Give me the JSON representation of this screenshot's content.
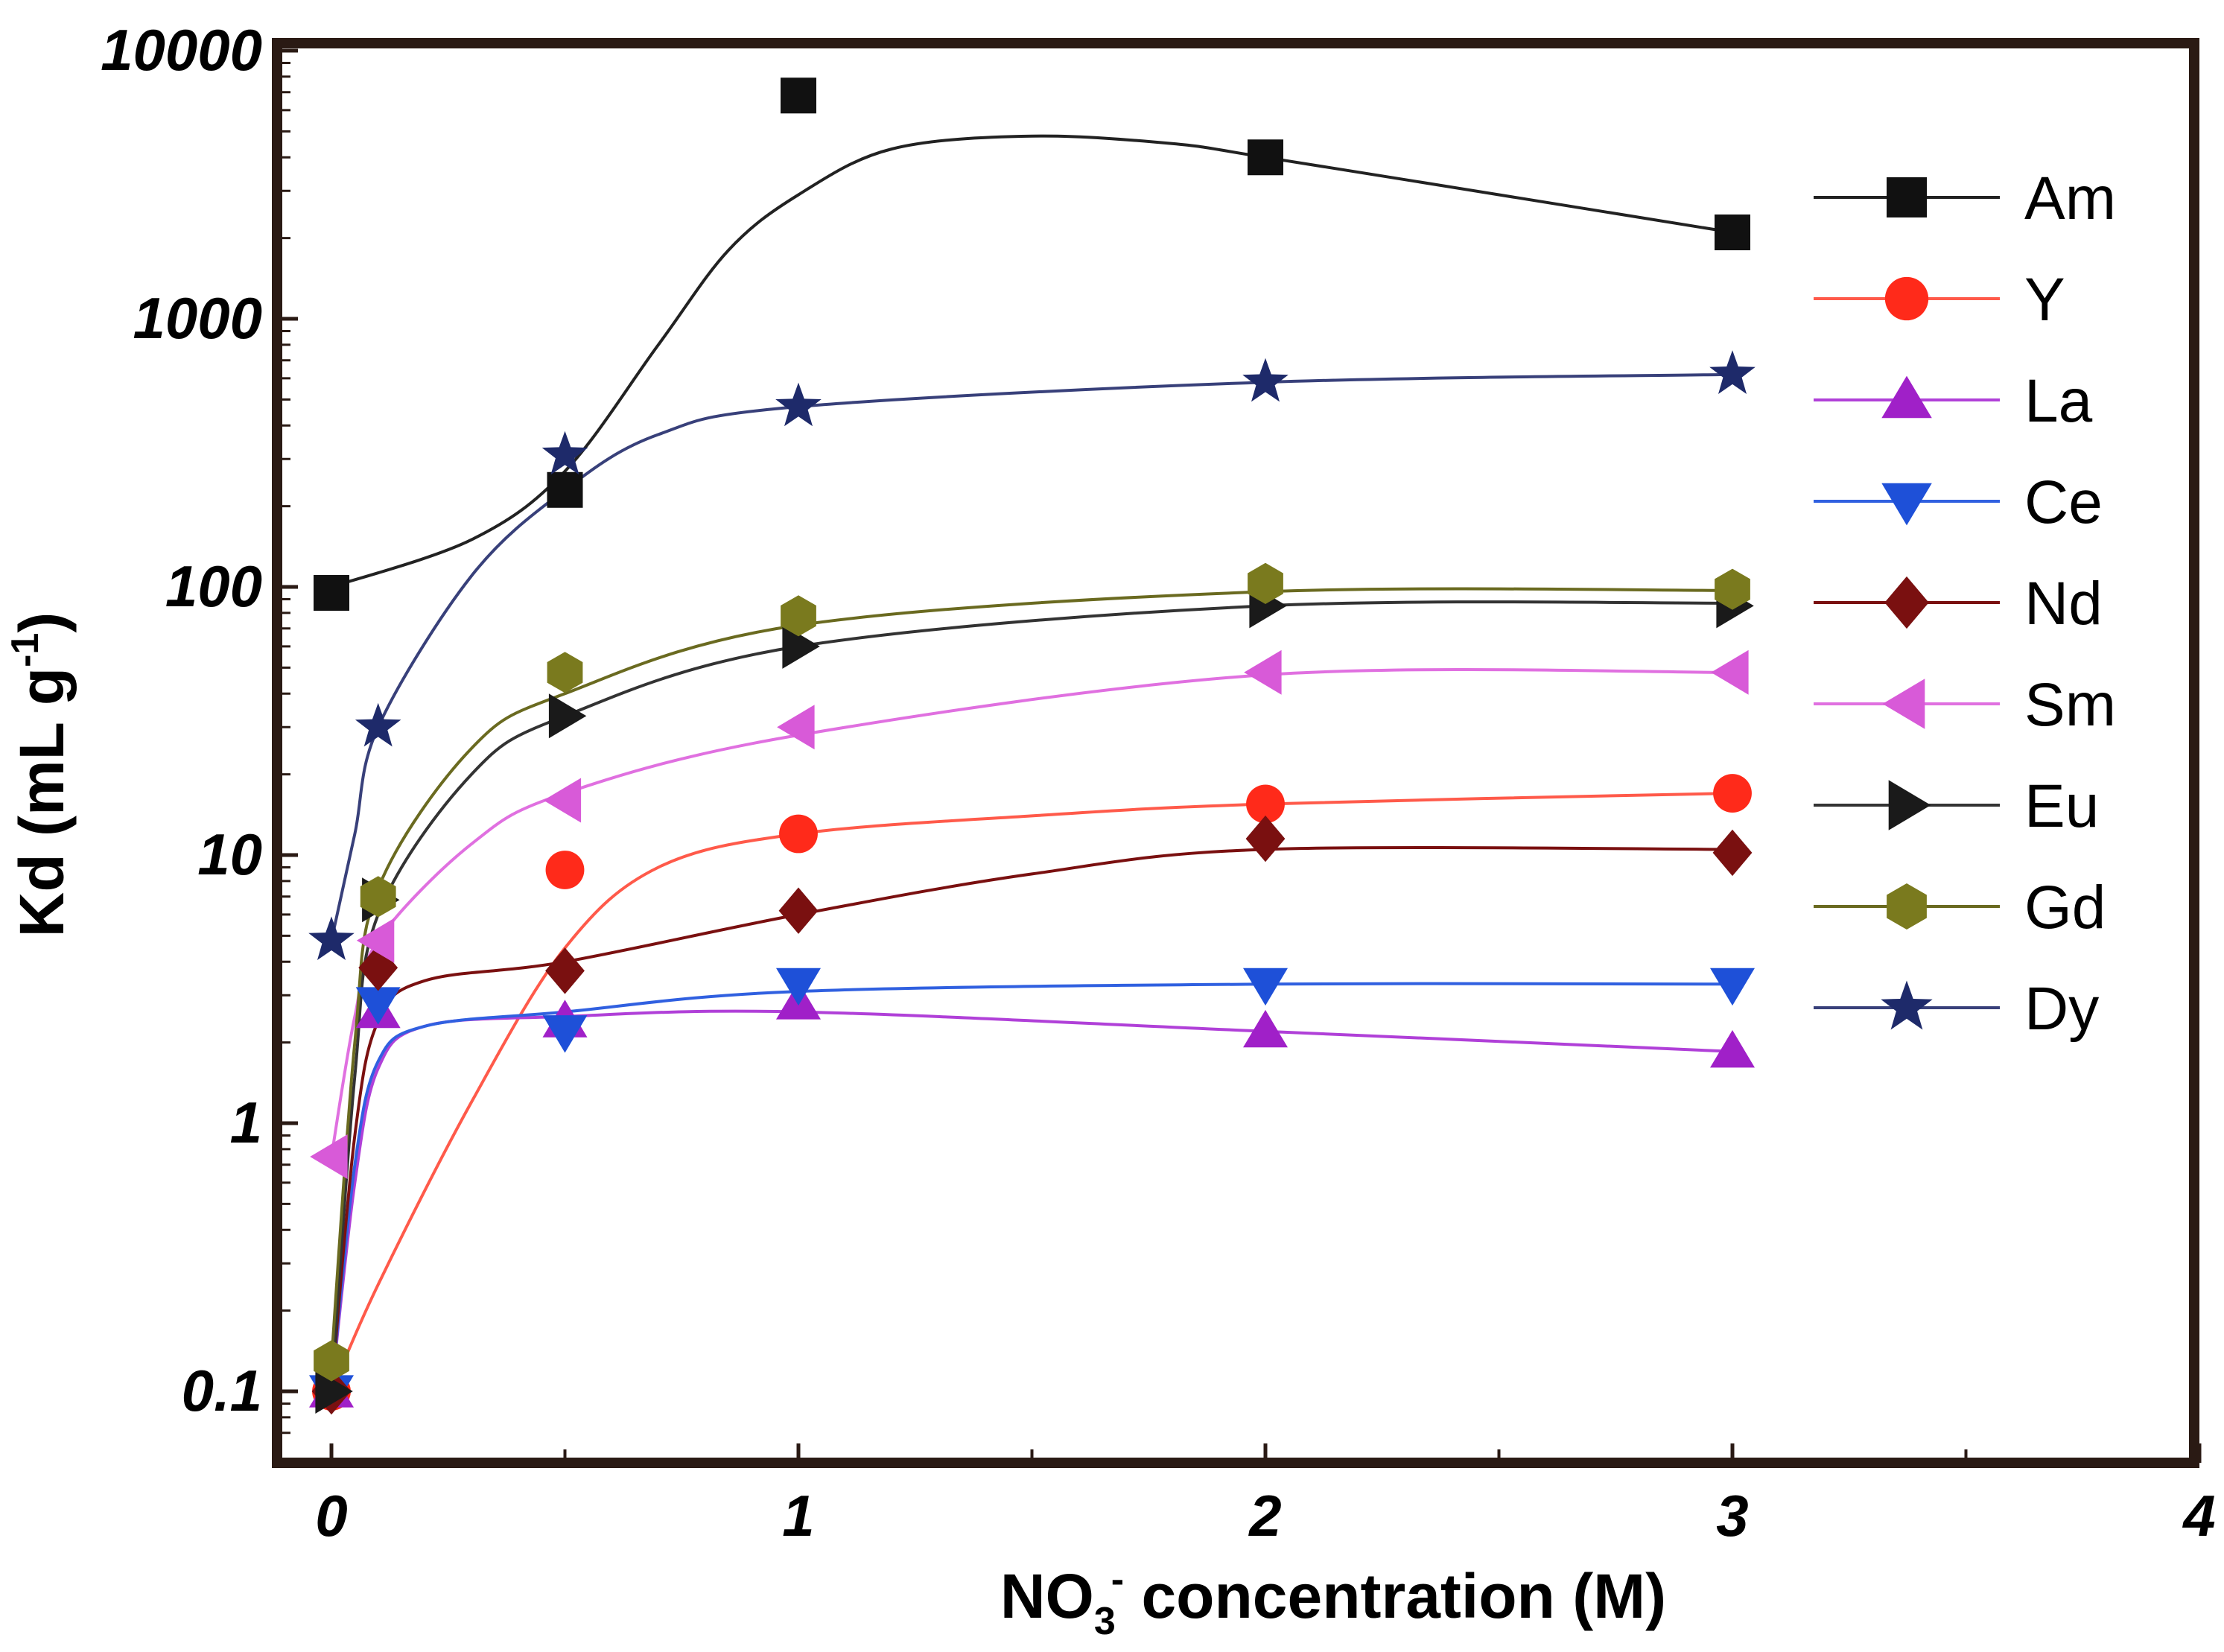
{
  "chart_data": {
    "type": "line",
    "title": "",
    "xlabel": {
      "main": "NO",
      "sub": "3",
      "sup": "-",
      "rest": " concentration (M)"
    },
    "ylabel": {
      "main": "Kd (mL g",
      "sup": "-1",
      "rest": ")"
    },
    "xlim": [
      -0.1,
      4
    ],
    "ylim": [
      0.07,
      10000
    ],
    "yscale": "log",
    "x_ticks": [
      0,
      1,
      2,
      3,
      4
    ],
    "x_tick_labels": [
      "0",
      "1",
      "2",
      "3",
      "4"
    ],
    "y_ticks": [
      0.1,
      1,
      10,
      100,
      1000,
      10000
    ],
    "y_tick_labels": [
      "0.1",
      "1",
      "10",
      "100",
      "1000",
      "10000"
    ],
    "legend_position": "right",
    "series": [
      {
        "name": "Am",
        "marker": "square",
        "color": "#111111",
        "line_color": "#222222",
        "x": [
          0,
          0.5,
          1,
          2,
          3
        ],
        "y": [
          95,
          230,
          6800,
          4000,
          2100
        ],
        "curve_x": [
          0,
          0.3,
          0.5,
          0.7,
          0.85,
          1,
          1.2,
          1.5,
          1.8,
          2,
          2.5,
          3
        ],
        "curve_y": [
          100,
          150,
          270,
          800,
          1800,
          2900,
          4300,
          4800,
          4500,
          4000,
          2900,
          2100
        ]
      },
      {
        "name": "Y",
        "marker": "circle",
        "color": "#ff2a1a",
        "line_color": "#ff5a4a",
        "x": [
          0,
          0.5,
          1,
          2,
          3
        ],
        "y": [
          0.1,
          8.8,
          12,
          15.5,
          17
        ],
        "curve_x": [
          0,
          0.1,
          0.3,
          0.5,
          0.7,
          1,
          1.5,
          2,
          3
        ],
        "curve_y": [
          0.1,
          0.25,
          1.2,
          4.5,
          9,
          12,
          14,
          15.5,
          17
        ]
      },
      {
        "name": "La",
        "marker": "triangle-up",
        "color": "#a020c8",
        "line_color": "#b040d8",
        "x": [
          0,
          0.1,
          0.5,
          1,
          2,
          3
        ],
        "y": [
          0.1,
          2.6,
          2.4,
          2.8,
          2.2,
          1.85
        ],
        "curve_x": [
          0,
          0.05,
          0.1,
          0.2,
          0.5,
          1,
          2,
          3
        ],
        "curve_y": [
          0.1,
          0.6,
          1.6,
          2.3,
          2.5,
          2.6,
          2.2,
          1.85
        ]
      },
      {
        "name": "Ce",
        "marker": "triangle-down",
        "color": "#1e50d8",
        "line_color": "#3060e0",
        "x": [
          0,
          0.1,
          0.5,
          1,
          2,
          3
        ],
        "y": [
          0.1,
          2.8,
          2.2,
          3.3,
          3.3,
          3.3
        ],
        "curve_x": [
          0,
          0.05,
          0.1,
          0.2,
          0.5,
          1,
          2,
          3
        ],
        "curve_y": [
          0.1,
          0.7,
          1.7,
          2.3,
          2.6,
          3.1,
          3.3,
          3.3
        ]
      },
      {
        "name": "Nd",
        "marker": "diamond",
        "color": "#7a1010",
        "line_color": "#7a1010",
        "x": [
          0,
          0.1,
          0.5,
          1,
          2,
          3
        ],
        "y": [
          0.1,
          3.8,
          3.7,
          6.2,
          11.5,
          10.2
        ],
        "curve_x": [
          0,
          0.05,
          0.1,
          0.2,
          0.5,
          1,
          1.5,
          2,
          3
        ],
        "curve_y": [
          0.1,
          0.9,
          2.4,
          3.4,
          4,
          6,
          8.5,
          10.5,
          10.5
        ]
      },
      {
        "name": "Sm",
        "marker": "triangle-left",
        "color": "#d85ad8",
        "line_color": "#e070e0",
        "x": [
          0,
          0.1,
          0.5,
          1,
          2,
          3
        ],
        "y": [
          0.75,
          4.8,
          16,
          30,
          48,
          48
        ],
        "curve_x": [
          0,
          0.05,
          0.1,
          0.3,
          0.5,
          1,
          2,
          3
        ],
        "curve_y": [
          0.75,
          2.5,
          4.8,
          11,
          17,
          28,
          47,
          48
        ]
      },
      {
        "name": "Eu",
        "marker": "triangle-right",
        "color": "#1a1a1a",
        "line_color": "#333333",
        "x": [
          0,
          0.1,
          0.5,
          1,
          2,
          3
        ],
        "y": [
          0.1,
          6.8,
          33,
          60,
          85,
          85
        ],
        "curve_x": [
          0,
          0.05,
          0.1,
          0.3,
          0.5,
          1,
          2,
          3
        ],
        "curve_y": [
          0.1,
          1.5,
          6,
          20,
          33,
          60,
          85,
          87
        ]
      },
      {
        "name": "Gd",
        "marker": "hexagon",
        "color": "#7a7a1e",
        "line_color": "#6a6a20",
        "x": [
          0,
          0.1,
          0.5,
          1,
          2,
          3
        ],
        "y": [
          0.13,
          7,
          48,
          78,
          103,
          98
        ],
        "curve_x": [
          0,
          0.05,
          0.1,
          0.3,
          0.5,
          1,
          2,
          3
        ],
        "curve_y": [
          0.13,
          2,
          7.5,
          25,
          40,
          72,
          96,
          97
        ]
      },
      {
        "name": "Dy",
        "marker": "star",
        "color": "#1e2a6a",
        "line_color": "#38407a",
        "x": [
          0,
          0.1,
          0.5,
          1,
          2,
          3
        ],
        "y": [
          4.8,
          30,
          310,
          470,
          580,
          620
        ],
        "curve_x": [
          0,
          0.05,
          0.1,
          0.3,
          0.5,
          0.7,
          1,
          2,
          3
        ],
        "curve_y": [
          4.8,
          12,
          30,
          110,
          230,
          370,
          470,
          580,
          620
        ]
      }
    ]
  }
}
